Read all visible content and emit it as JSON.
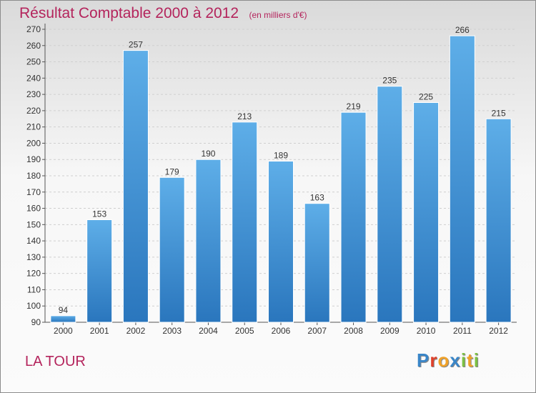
{
  "chart_data": {
    "type": "bar",
    "title": "Résultat Comptable 2000 à 2012",
    "subtitle": "(en milliers d'€)",
    "categories": [
      "2000",
      "2001",
      "2002",
      "2003",
      "2004",
      "2005",
      "2006",
      "2007",
      "2008",
      "2009",
      "2010",
      "2011",
      "2012"
    ],
    "values": [
      94,
      153,
      257,
      179,
      190,
      213,
      189,
      163,
      219,
      235,
      225,
      266,
      215
    ],
    "ylim": [
      90,
      270
    ],
    "yticks": [
      90,
      100,
      110,
      120,
      130,
      140,
      150,
      160,
      170,
      180,
      190,
      200,
      210,
      220,
      230,
      240,
      250,
      260,
      270
    ],
    "grid": true,
    "bar_color_light": "#5eaee8",
    "bar_color_dark": "#2a76bd"
  },
  "location": "LA TOUR",
  "logo": {
    "letters": [
      "P",
      "r",
      "o",
      "x",
      "i",
      "t",
      "i"
    ],
    "colors": [
      "#3a86c8",
      "#e0402a",
      "#f0a22a",
      "#3a86c8",
      "#7cc043",
      "#f0a22a",
      "#7cc043"
    ]
  }
}
